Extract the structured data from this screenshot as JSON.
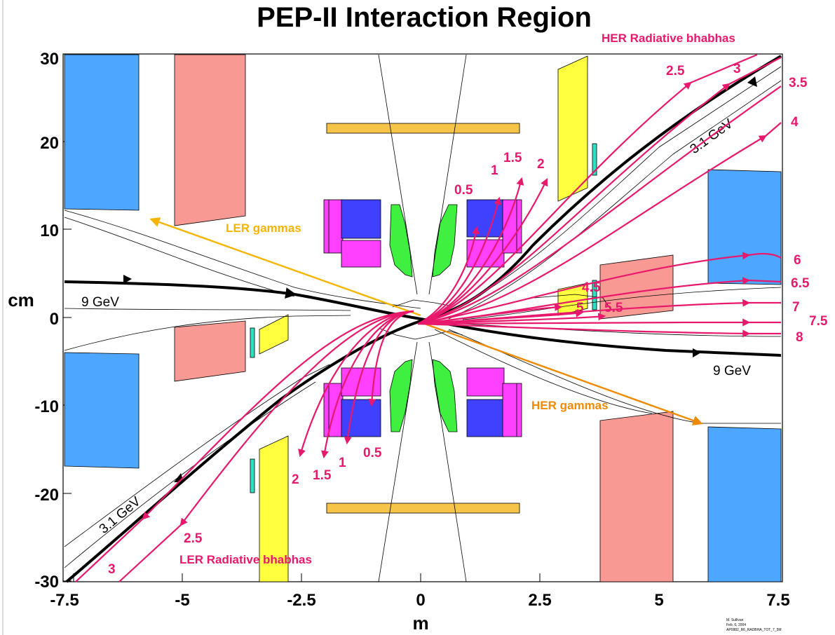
{
  "title": "PEP-II Interaction Region",
  "x_axis": {
    "label": "m",
    "ticks": [
      "-7.5",
      "-5",
      "-2.5",
      "0",
      "2.5",
      "5",
      "7.5"
    ]
  },
  "y_axis": {
    "label": "cm",
    "ticks": [
      "30",
      "20",
      "10",
      "0",
      "-10",
      "-20",
      "-30"
    ]
  },
  "beams": {
    "her_in": "9 GeV",
    "her_out": "9 GeV",
    "ler_upper": "3.1 GeV",
    "ler_lower": "3.1 GeV"
  },
  "gammas": {
    "ler": "LER gammas",
    "her": "HER gammas"
  },
  "her_radiative": {
    "heading": "HER Radiative bhabhas",
    "labels": [
      "0.5",
      "1",
      "1.5",
      "2",
      "2.5",
      "3",
      "3.5",
      "4",
      "4.5",
      "5",
      "5.5",
      "6",
      "6.5",
      "7",
      "7.5",
      "8"
    ]
  },
  "ler_radiative": {
    "heading": "LER Radiative bhabhas",
    "labels": [
      "0.5",
      "1",
      "1.5",
      "2",
      "2.5",
      "3"
    ]
  },
  "credit": [
    "M. Sullivan",
    "Feb. 6, 2004",
    "AP0882_R6_RADBHA_TOT_7_5M"
  ],
  "colors": {
    "quad_blue": "#4da6ff",
    "quad_salmon": "#f89a93",
    "mask_yellow": "#ffff40",
    "support_tube": "#f6c449",
    "magnet_magenta": "#ff40ff",
    "magnet_indigo": "#4040ff",
    "mask_green": "#40f040",
    "small_cyan": "#30e0c0",
    "ray_magenta": "#e8196c",
    "ler_gamma": "#f5b400",
    "her_gamma": "#f08a00"
  }
}
